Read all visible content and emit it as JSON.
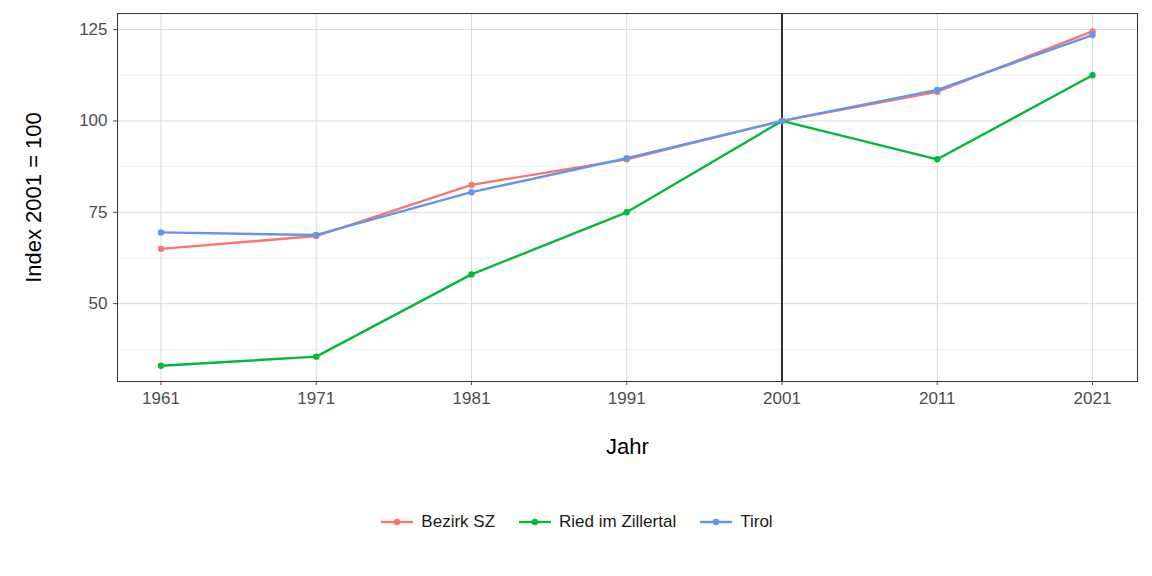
{
  "chart_data": {
    "type": "line",
    "x_label": "Jahr",
    "y_label": "Index 2001 = 100",
    "x": [
      1961,
      1971,
      1981,
      1991,
      2001,
      2011,
      2021
    ],
    "series": [
      {
        "name": "Bezirk SZ",
        "color": "#F8766D",
        "values": [
          65,
          68.5,
          82.5,
          89.5,
          100,
          108,
          124.5
        ]
      },
      {
        "name": "Ried im Zillertal",
        "color": "#00BA38",
        "values": [
          33,
          35.5,
          58,
          75,
          100,
          89.5,
          112.5
        ]
      },
      {
        "name": "Tirol",
        "color": "#6495ED",
        "values": [
          69.5,
          68.8,
          80.5,
          89.8,
          100,
          108.5,
          123.5
        ]
      }
    ],
    "xlim": [
      1958.2,
      2023.9
    ],
    "xticks": [
      1961,
      1971,
      1981,
      1991,
      2001,
      2011,
      2021
    ],
    "ylim": [
      28.7,
      129.4
    ],
    "yticks": [
      50,
      75,
      100,
      125
    ],
    "vline": 2001,
    "grid": true,
    "marker": "circle",
    "legend": "bottom"
  }
}
